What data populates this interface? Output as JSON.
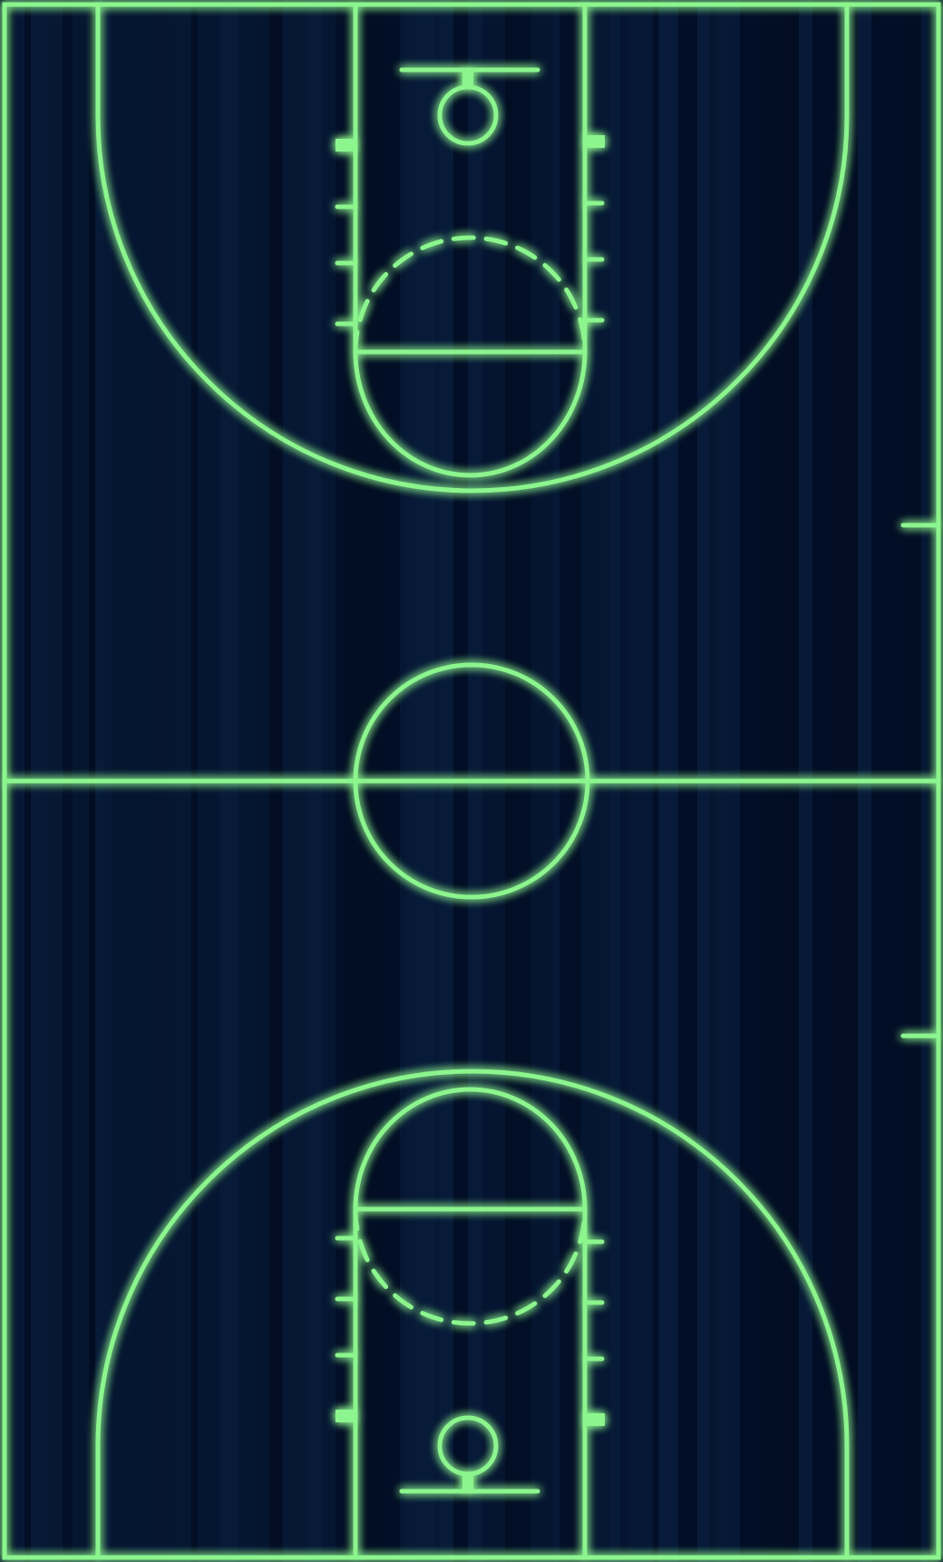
{
  "colors": {
    "background": "#03112b",
    "floor_stripe_dark": "#020c1f",
    "floor_stripe_light": "#0a2040",
    "line": "#8cf58e",
    "glow": "#33ff55"
  },
  "court": {
    "orientation": "vertical",
    "baskets": [
      "top",
      "bottom"
    ],
    "free_throw_circle_style": "half-solid-half-dashed",
    "has_center_circle": true,
    "has_sideline_hash_marks": true
  }
}
